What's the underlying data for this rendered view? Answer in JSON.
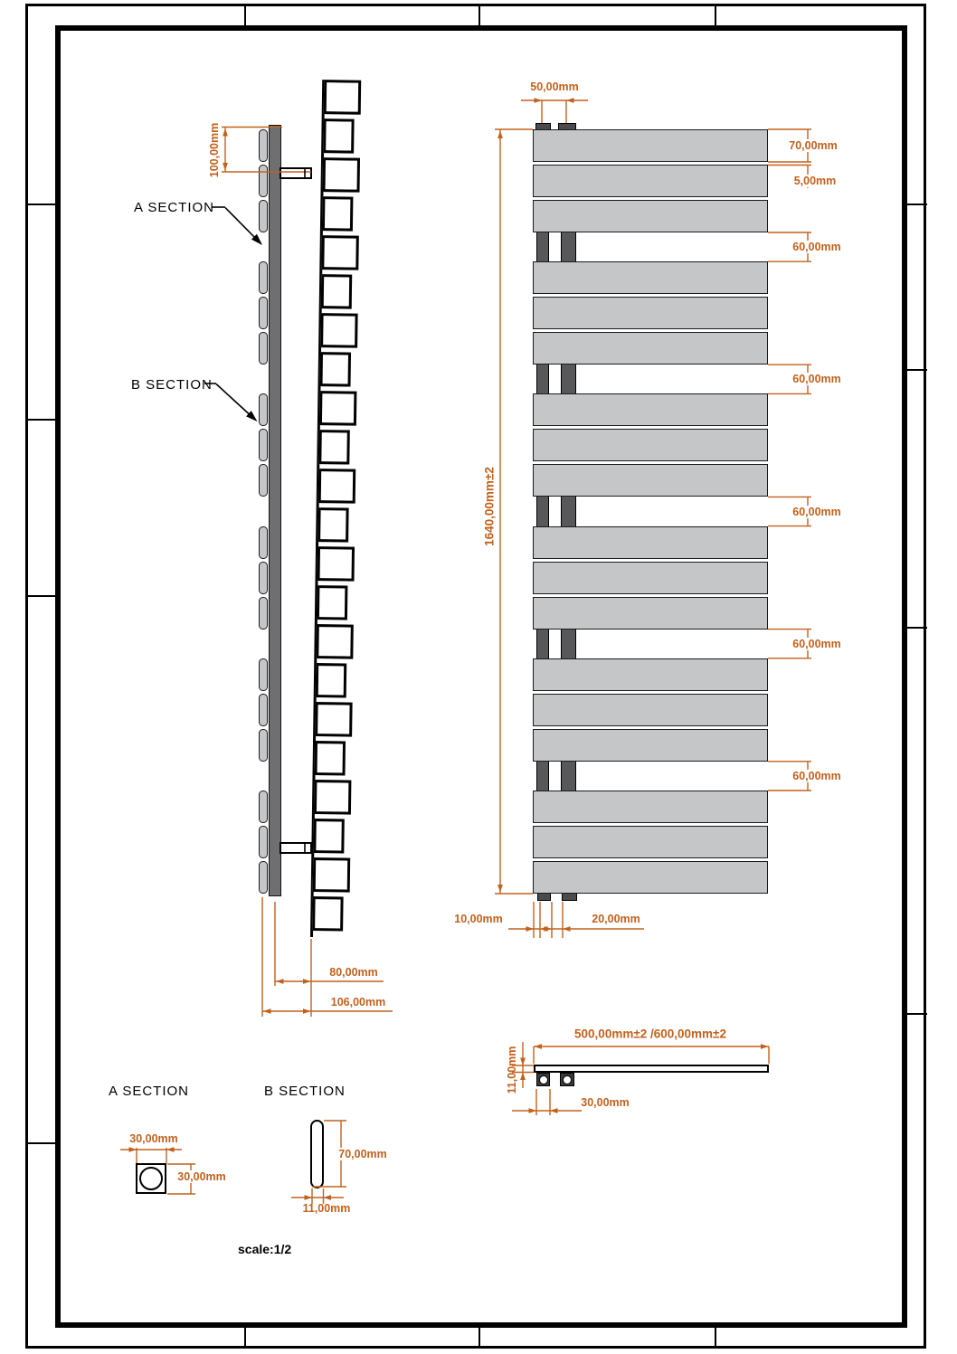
{
  "labels": {
    "a_section_callout": "A SECTION",
    "b_section_callout": "B SECTION"
  },
  "front_view": {
    "top_width_dim": "50,00mm",
    "panel_height_dim": "70,00mm",
    "panel_gap_dim": "5,00mm",
    "group_gap_dim": "60,00mm",
    "group_gap_count": 5,
    "total_height_dim": "1640,00mm±2",
    "bottom_left_offset_dim": "10,00mm",
    "bottom_pipe_gap_dim": "20,00mm",
    "panel_groups": 6,
    "panels_per_group": 3
  },
  "side_view": {
    "bracket_offset_dim": "100,00mm",
    "collector_depth_dim": "80,00mm",
    "overall_depth_dim": "106,00mm"
  },
  "plan_view": {
    "width_dim": "500,00mm±2 /600,00mm±2",
    "thickness_dim": "11,00mm",
    "pipe_width_dim": "30,00mm"
  },
  "a_section_detail": {
    "heading": "A SECTION",
    "width_dim": "30,00mm",
    "height_dim": "30,00mm"
  },
  "b_section_detail": {
    "heading": "B SECTION",
    "height_dim": "70,00mm",
    "thickness_dim": "11,00mm"
  },
  "scale_note": "scale:1/2",
  "colors": {
    "dimension": "#c2611d",
    "panel_fill": "#c5c6c8",
    "collector_fill": "#6f6f71",
    "pipe_fill": "#58585a",
    "line": "#000000"
  }
}
